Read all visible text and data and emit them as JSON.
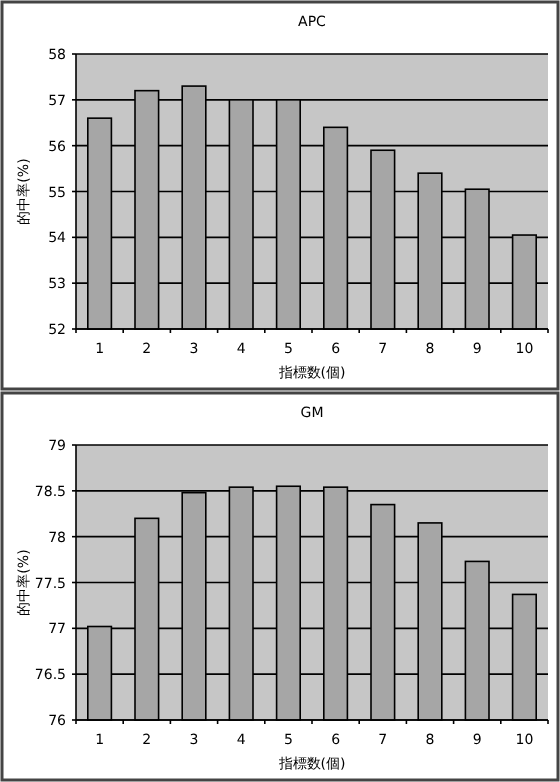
{
  "chart_data": [
    {
      "type": "bar",
      "title": "APC",
      "xlabel": "指標数(個)",
      "ylabel": "的中率(%)",
      "categories": [
        "1",
        "2",
        "3",
        "4",
        "5",
        "6",
        "7",
        "8",
        "9",
        "10"
      ],
      "values": [
        56.6,
        57.2,
        57.3,
        57.0,
        57.0,
        56.4,
        55.9,
        55.4,
        55.05,
        54.05
      ],
      "color": "#a6a6a6",
      "ylim": [
        52,
        58
      ],
      "yticks": [
        52,
        53,
        54,
        55,
        56,
        57,
        58
      ],
      "grid": "y"
    },
    {
      "type": "bar",
      "title": "GM",
      "xlabel": "指標数(個)",
      "ylabel": "的中率(%)",
      "categories": [
        "1",
        "2",
        "3",
        "4",
        "5",
        "6",
        "7",
        "8",
        "9",
        "10"
      ],
      "values": [
        77.02,
        78.2,
        78.48,
        78.54,
        78.55,
        78.54,
        78.35,
        78.15,
        77.73,
        77.37
      ],
      "color": "#a6a6a6",
      "ylim": [
        76,
        79
      ],
      "yticks": [
        76,
        76.5,
        77,
        77.5,
        78,
        78.5,
        79
      ],
      "grid": "y"
    }
  ]
}
